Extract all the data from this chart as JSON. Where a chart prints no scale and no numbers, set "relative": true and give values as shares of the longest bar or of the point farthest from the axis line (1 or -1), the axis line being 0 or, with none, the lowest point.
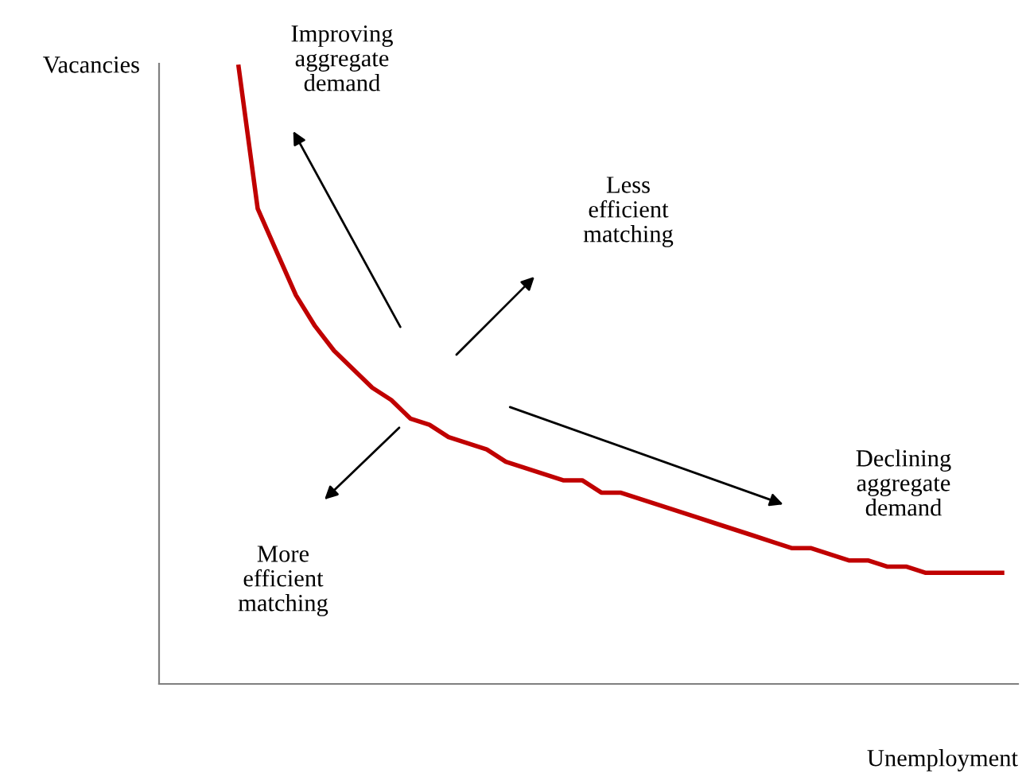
{
  "chart_data": {
    "type": "line",
    "relative": true,
    "xlabel": "Unemployment",
    "ylabel": "Vacancies",
    "categories": [
      null,
      null,
      null,
      null,
      null,
      null,
      null,
      null,
      null,
      null,
      null,
      null,
      null,
      null,
      null,
      null,
      null,
      null,
      null,
      null,
      null,
      null,
      null,
      null,
      null,
      null,
      null,
      null,
      null,
      null,
      null,
      null,
      null,
      null,
      null,
      null,
      null,
      null,
      null,
      null,
      null
    ],
    "series": [
      {
        "color": "#c00000",
        "values": [
          1.0,
          0.77,
          0.7,
          0.63,
          0.58,
          0.54,
          0.51,
          0.48,
          0.46,
          0.43,
          0.42,
          0.4,
          0.39,
          0.38,
          0.36,
          0.35,
          0.34,
          0.33,
          0.33,
          0.31,
          0.31,
          0.3,
          0.29,
          0.28,
          0.27,
          0.26,
          0.25,
          0.24,
          0.23,
          0.22,
          0.22,
          0.21,
          0.2,
          0.2,
          0.19,
          0.19,
          0.18,
          0.18,
          0.18,
          0.18,
          0.18
        ]
      }
    ],
    "annotations": [
      "Improving\naggregate\ndemand",
      "Less\nefficient\nmatching",
      "Declining\naggregate\ndemand",
      "More\nefficient\nmatching"
    ],
    "grid": false,
    "legend": false,
    "marker": "none",
    "line_style": "solid"
  }
}
